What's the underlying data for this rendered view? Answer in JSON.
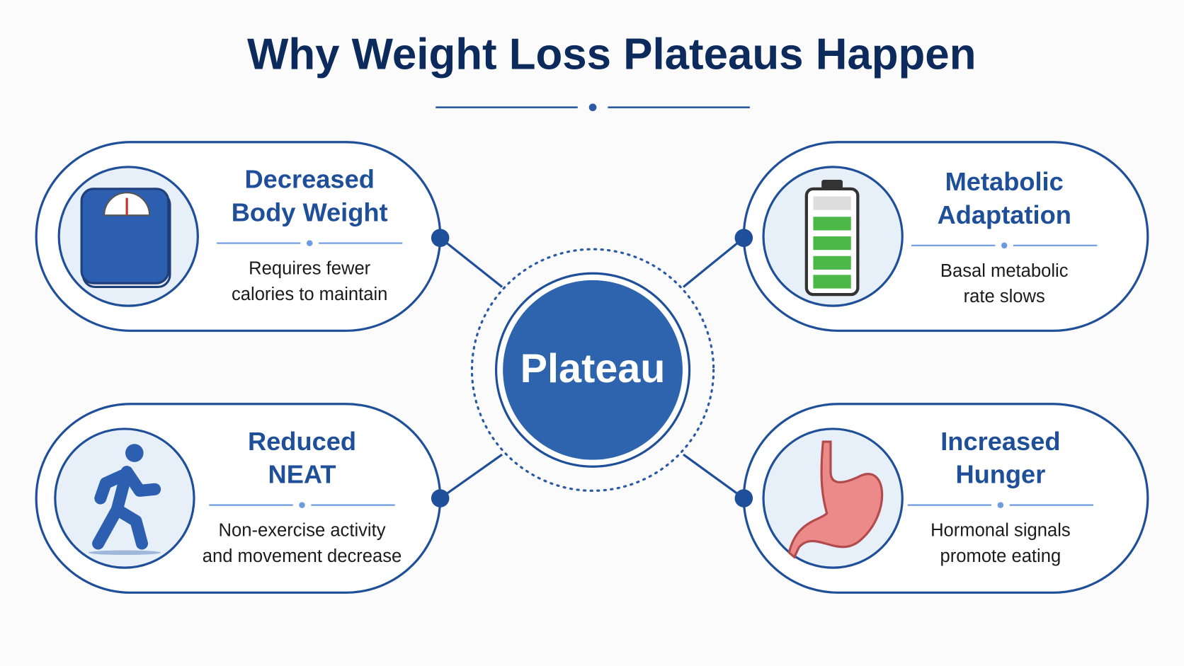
{
  "title": "Why Weight Loss Plateaus Happen",
  "center": {
    "label": "Plateau"
  },
  "cards": [
    {
      "title_lines": [
        "Decreased",
        "Body Weight"
      ],
      "description_lines": [
        "Requires fewer",
        "calories to maintain"
      ]
    },
    {
      "title_lines": [
        "Metabolic",
        "Adaptation"
      ],
      "description_lines": [
        "Basal metabolic",
        "rate slows"
      ]
    },
    {
      "title_lines": [
        "Reduced",
        "NEAT"
      ],
      "description_lines": [
        "Non-exercise activity",
        "and movement decrease"
      ]
    },
    {
      "title_lines": [
        "Increased",
        "Hunger"
      ],
      "description_lines": [
        "Hormonal signals",
        "promote eating"
      ]
    }
  ]
}
